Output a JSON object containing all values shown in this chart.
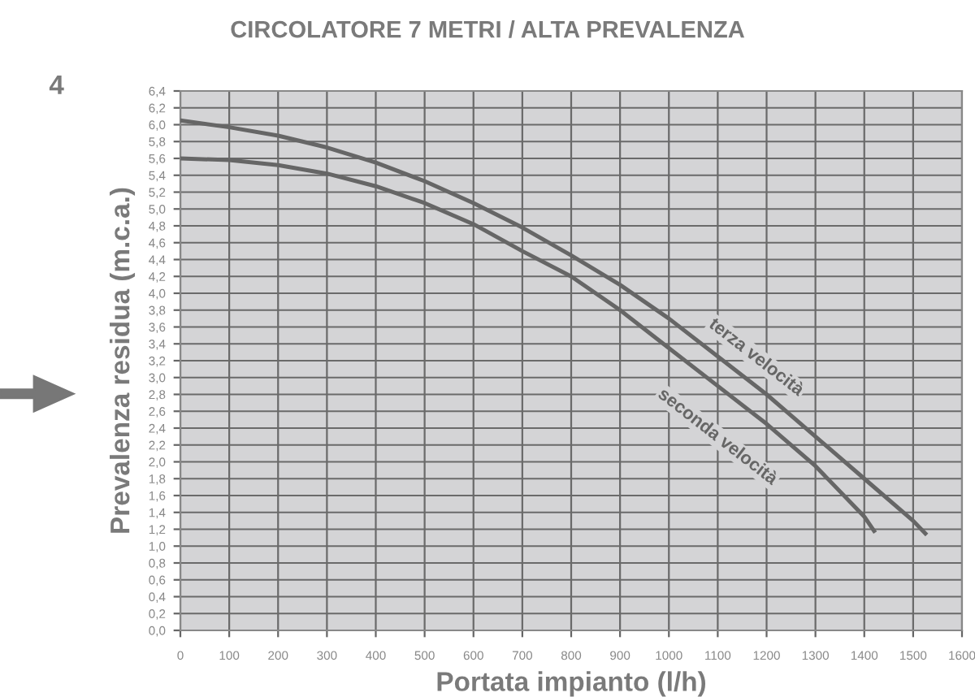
{
  "chart_data": {
    "type": "line",
    "title": "CIRCOLATORE 7 METRI / ALTA PREVALENZA",
    "xlabel": "Portata impianto (l/h)",
    "ylabel": "Prevalenza residua (m.c.a.)",
    "annotations": [
      "4"
    ],
    "series": [
      {
        "name": "terza velocità",
        "color": "#666666",
        "x": [
          0,
          100,
          200,
          300,
          400,
          500,
          600,
          700,
          800,
          900,
          1000,
          1100,
          1200,
          1300,
          1400,
          1500,
          1525
        ],
        "values": [
          6.05,
          5.97,
          5.87,
          5.73,
          5.55,
          5.33,
          5.07,
          4.78,
          4.45,
          4.1,
          3.7,
          3.25,
          2.8,
          2.3,
          1.8,
          1.3,
          1.15
        ]
      },
      {
        "name": "seconda velocità",
        "color": "#666666",
        "x": [
          0,
          100,
          200,
          300,
          400,
          500,
          600,
          700,
          800,
          900,
          1000,
          1100,
          1200,
          1300,
          1400,
          1420
        ],
        "values": [
          5.6,
          5.58,
          5.52,
          5.42,
          5.27,
          5.07,
          4.82,
          4.5,
          4.2,
          3.8,
          3.35,
          2.9,
          2.45,
          1.95,
          1.35,
          1.18
        ]
      }
    ],
    "xlim": [
      0,
      1600
    ],
    "xticks": [
      0,
      100,
      200,
      300,
      400,
      500,
      600,
      700,
      800,
      900,
      1000,
      1100,
      1200,
      1300,
      1400,
      1500,
      1600
    ],
    "ylim": [
      0,
      6.4
    ],
    "yticks": [
      {
        "value": 0,
        "label": "0,0"
      },
      {
        "value": 0.2,
        "label": "0,2"
      },
      {
        "value": 0.4,
        "label": "0,4"
      },
      {
        "value": 0.6,
        "label": "0,6"
      },
      {
        "value": 0.8,
        "label": "0,8"
      },
      {
        "value": 1.0,
        "label": "1,0"
      },
      {
        "value": 1.2,
        "label": "1,2"
      },
      {
        "value": 1.4,
        "label": "1,4"
      },
      {
        "value": 1.6,
        "label": "1,6"
      },
      {
        "value": 1.8,
        "label": "1,8"
      },
      {
        "value": 2.0,
        "label": "2,0"
      },
      {
        "value": 2.2,
        "label": "2,2"
      },
      {
        "value": 2.4,
        "label": "2,4"
      },
      {
        "value": 2.6,
        "label": "2,6"
      },
      {
        "value": 2.8,
        "label": "2,8"
      },
      {
        "value": 3.0,
        "label": "3,0"
      },
      {
        "value": 3.2,
        "label": "3,2"
      },
      {
        "value": 3.4,
        "label": "3,4"
      },
      {
        "value": 3.6,
        "label": "3,6"
      },
      {
        "value": 3.8,
        "label": "3,8"
      },
      {
        "value": 4.0,
        "label": "4,0"
      },
      {
        "value": 4.2,
        "label": "4,2"
      },
      {
        "value": 4.4,
        "label": "4,4"
      },
      {
        "value": 4.6,
        "label": "4,6"
      },
      {
        "value": 4.8,
        "label": "4,8"
      },
      {
        "value": 5.0,
        "label": "5,0"
      },
      {
        "value": 5.2,
        "label": "5,2"
      },
      {
        "value": 5.4,
        "label": "5,4"
      },
      {
        "value": 5.6,
        "label": "5,6"
      },
      {
        "value": 5.8,
        "label": "5,8"
      },
      {
        "value": 6.0,
        "label": "6,0"
      },
      {
        "value": 6.2,
        "label": "6,2"
      },
      {
        "value": 6.4,
        "label": "6,4"
      }
    ],
    "grid": true,
    "line_style": "solid"
  }
}
